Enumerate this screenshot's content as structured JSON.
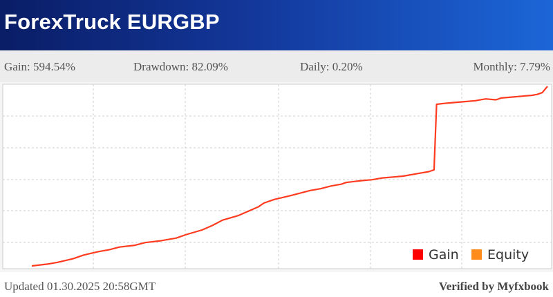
{
  "header": {
    "title": "ForexTruck EURGBP"
  },
  "stats": [
    {
      "label": "Gain:",
      "value": "594.54%"
    },
    {
      "label": "Drawdown:",
      "value": "82.09%"
    },
    {
      "label": "Daily:",
      "value": "0.20%"
    },
    {
      "label": "Monthly:",
      "value": "7.79%"
    }
  ],
  "colors": {
    "gain": "#ff0000",
    "equity": "#ff8c1a",
    "line": "#ff3b1f"
  },
  "chart_data": {
    "type": "line",
    "grid": true,
    "legend_position": "bottom-right",
    "series": [
      {
        "name": "Gain",
        "x": [
          0,
          3,
          5,
          8,
          10,
          13,
          15,
          17,
          20,
          22,
          25,
          28,
          30,
          33,
          35,
          37,
          40,
          42,
          44,
          45,
          47,
          50,
          52,
          54,
          56,
          58,
          60,
          61,
          64,
          66,
          68,
          70,
          72,
          75,
          77,
          78,
          78.5,
          80,
          82,
          84,
          86,
          88,
          90,
          91,
          93,
          95,
          97,
          98,
          99,
          100
        ],
        "y": [
          0,
          2,
          4,
          8,
          12,
          16,
          18,
          21,
          23,
          26,
          28,
          31,
          35,
          40,
          45,
          51,
          56,
          61,
          66,
          70,
          74,
          78,
          81,
          84,
          86,
          89,
          91,
          93,
          95,
          96,
          98,
          99,
          100,
          103,
          105,
          107,
          180,
          181,
          182,
          183,
          184,
          186,
          185,
          187,
          188,
          189,
          190,
          191,
          193,
          200
        ]
      },
      {
        "name": "Equity",
        "x": [],
        "y": []
      }
    ]
  },
  "footer": {
    "updated": "Updated 01.30.2025 20:58GMT",
    "verified": "Verified by Myfxbook"
  }
}
